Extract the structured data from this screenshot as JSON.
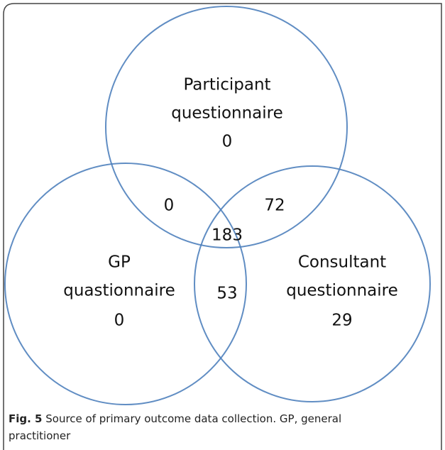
{
  "sets": [
    {
      "name": [
        "Participant",
        "questionnaire"
      ],
      "only": 0
    },
    {
      "name": [
        "GP",
        "quastionnaire"
      ],
      "only": 0
    },
    {
      "name": [
        "Consultant",
        "questionnaire"
      ],
      "only": 29
    }
  ],
  "overlaps": {
    "participant_gp": 0,
    "participant_consultant": 72,
    "gp_consultant": 53,
    "all": 183
  },
  "caption": {
    "label": "Fig. 5",
    "text": "Source of primary outcome data collection. GP, general practitioner"
  }
}
